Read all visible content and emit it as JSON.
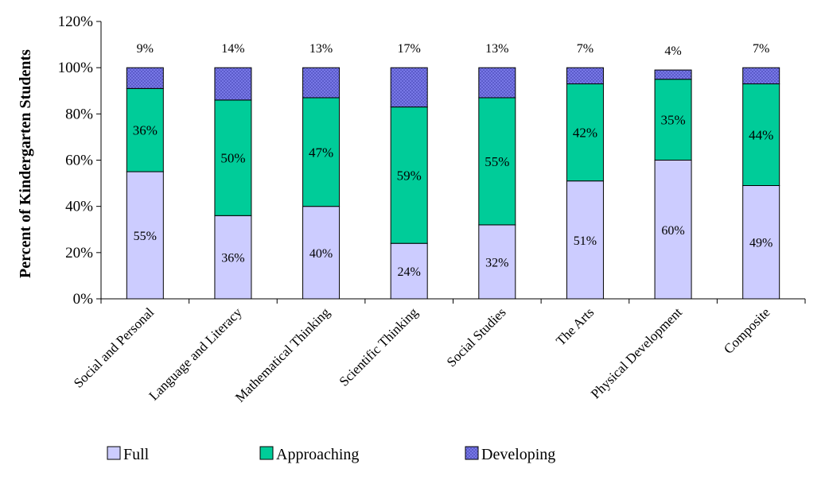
{
  "chart_data": {
    "type": "bar",
    "stacked": true,
    "title": "",
    "xlabel": "",
    "ylabel": "Percent of Kindergarten Students",
    "ylim": [
      0,
      120
    ],
    "yticks": [
      "0%",
      "20%",
      "40%",
      "60%",
      "80%",
      "100%",
      "120%"
    ],
    "grid": false,
    "legend_placement": "bottom",
    "categories": [
      "Social and Personal",
      "Language and Literacy",
      "Mathematical Thinking",
      "Scientific Thinking",
      "Social Studies",
      "The Arts",
      "Physical Development",
      "Composite"
    ],
    "series": [
      {
        "name": "Full",
        "color": "#ccccff",
        "values": [
          55,
          36,
          40,
          24,
          32,
          51,
          60,
          49
        ],
        "labels": [
          "55%",
          "36%",
          "40%",
          "24%",
          "32%",
          "51%",
          "60%",
          "49%"
        ]
      },
      {
        "name": "Approaching",
        "color": "#00cc99",
        "values": [
          36,
          50,
          47,
          59,
          55,
          42,
          35,
          44
        ],
        "labels": [
          "36%",
          "50%",
          "47%",
          "59%",
          "55%",
          "42%",
          "35%",
          "44%"
        ]
      },
      {
        "name": "Developing",
        "color": "#7070e0",
        "values": [
          9,
          14,
          13,
          17,
          13,
          7,
          4,
          7
        ],
        "labels": [
          "9%",
          "14%",
          "13%",
          "17%",
          "13%",
          "7%",
          "4%",
          "7%"
        ]
      }
    ]
  }
}
